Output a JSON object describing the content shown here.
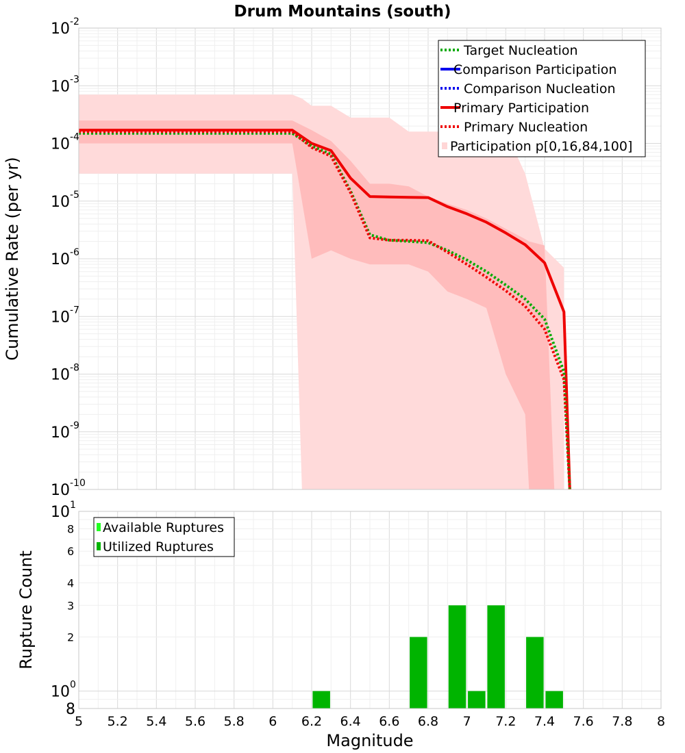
{
  "chart_data": [
    {
      "type": "line",
      "title": "Drum Mountains (south)",
      "xlabel": "",
      "ylabel": "Cumulative Rate (per yr)",
      "xlim": [
        5,
        8
      ],
      "ylim": [
        1e-10,
        0.01
      ],
      "yscale": "log",
      "grid": true,
      "legend_position": "top-right",
      "y_ticks": [
        {
          "base": "10",
          "exp": "-2",
          "value": 0.01
        },
        {
          "base": "10",
          "exp": "-3",
          "value": 0.001
        },
        {
          "base": "10",
          "exp": "-4",
          "value": 0.0001
        },
        {
          "base": "10",
          "exp": "-5",
          "value": 1e-05
        },
        {
          "base": "10",
          "exp": "-6",
          "value": 1e-06
        },
        {
          "base": "10",
          "exp": "-7",
          "value": 1e-07
        },
        {
          "base": "10",
          "exp": "-8",
          "value": 1e-08
        },
        {
          "base": "10",
          "exp": "-9",
          "value": 1e-09
        },
        {
          "base": "10",
          "exp": "-10",
          "value": 1e-10
        }
      ],
      "legend": [
        {
          "label": "Target Nucleation",
          "color": "#00aa00",
          "style": "dotted"
        },
        {
          "label": "Comparison Participation",
          "color": "#0000ee",
          "style": "solid"
        },
        {
          "label": "Comparison Nucleation",
          "color": "#0000ee",
          "style": "dotted"
        },
        {
          "label": "Primary Participation",
          "color": "#ee0000",
          "style": "solid"
        },
        {
          "label": "Primary Nucleation",
          "color": "#ee0000",
          "style": "dotted"
        },
        {
          "label": "Participation p[0,16,84,100]",
          "color": "#ffd6d6",
          "style": "band"
        }
      ],
      "series": [
        {
          "name": "Primary Participation",
          "color": "#ee0000",
          "dashed": false,
          "x": [
            5.0,
            6.1,
            6.2,
            6.3,
            6.4,
            6.5,
            6.6,
            6.7,
            6.8,
            6.9,
            7.0,
            7.1,
            7.2,
            7.3,
            7.4,
            7.5,
            7.53
          ],
          "y": [
            0.00017,
            0.00017,
            0.0001,
            7.5e-05,
            2.5e-05,
            1.2e-05,
            1.18e-05,
            1.16e-05,
            1.15e-05,
            8e-06,
            6e-06,
            4.3e-06,
            2.8e-06,
            1.75e-06,
            8.5e-07,
            1.2e-07,
            1e-10
          ]
        },
        {
          "name": "Target Nucleation",
          "color": "#00aa00",
          "dashed": true,
          "x": [
            5.0,
            6.1,
            6.2,
            6.3,
            6.4,
            6.5,
            6.6,
            6.7,
            6.8,
            6.9,
            7.0,
            7.1,
            7.2,
            7.3,
            7.4,
            7.5,
            7.53
          ],
          "y": [
            0.00015,
            0.00015,
            9e-05,
            6.5e-05,
            1.5e-05,
            2.6e-06,
            2.1e-06,
            2e-06,
            1.9e-06,
            1.4e-06,
            9.5e-07,
            6e-07,
            3.5e-07,
            2e-07,
            9e-08,
            1.1e-08,
            1e-10
          ]
        },
        {
          "name": "Primary Nucleation",
          "color": "#ee0000",
          "dashed": true,
          "x": [
            5.0,
            6.1,
            6.2,
            6.3,
            6.4,
            6.5,
            6.6,
            6.7,
            6.8,
            6.9,
            7.0,
            7.1,
            7.2,
            7.3,
            7.4,
            7.5,
            7.53
          ],
          "y": [
            0.00016,
            0.00016,
            8.5e-05,
            6e-05,
            1.4e-05,
            2.3e-06,
            2.1e-06,
            2.1e-06,
            2.05e-06,
            1.3e-06,
            8e-07,
            4.8e-07,
            2.8e-07,
            1.5e-07,
            6e-08,
            8e-09,
            1e-10
          ]
        }
      ],
      "bands": [
        {
          "name": "Participation p[0,100]",
          "color": "#ffdada",
          "x": [
            5.0,
            6.1,
            6.15,
            6.2,
            6.3,
            6.4,
            6.5,
            6.6,
            6.7,
            6.8,
            6.9,
            7.0,
            7.1,
            7.2,
            7.3,
            7.4,
            7.5
          ],
          "upper": [
            0.0007,
            0.0007,
            0.0006,
            0.00045,
            0.00045,
            0.00028,
            0.00028,
            0.00028,
            0.00016,
            0.00016,
            0.00016,
            0.00016,
            0.00016,
            0.00016,
            3e-05,
            1.5e-06,
            7e-07
          ],
          "lower": [
            3e-05,
            3e-05,
            1e-10,
            1e-10,
            1e-10,
            1e-10,
            1e-10,
            1e-10,
            1e-10,
            1e-10,
            1e-10,
            1e-10,
            1e-10,
            1e-10,
            1e-10,
            1e-10,
            1e-10
          ]
        },
        {
          "name": "Participation p[16,84]",
          "color": "#ffbcbc",
          "x": [
            5.0,
            6.1,
            6.2,
            6.3,
            6.4,
            6.5,
            6.6,
            6.7,
            6.8,
            6.9,
            7.0,
            7.1,
            7.2,
            7.3,
            7.32,
            7.4,
            7.45
          ],
          "upper": [
            0.00025,
            0.00025,
            0.00017,
            0.00011,
            5e-05,
            2e-05,
            2e-05,
            1.8e-05,
            1.2e-05,
            9e-06,
            7e-06,
            5e-06,
            3.3e-06,
            2.2e-06,
            2e-06,
            1.7e-06,
            1e-10
          ],
          "lower": [
            0.0001,
            0.0001,
            1e-06,
            1.4e-06,
            1e-06,
            8e-07,
            8e-07,
            8e-07,
            6e-07,
            2.7e-07,
            2e-07,
            1.4e-07,
            1e-08,
            2e-09,
            1e-10,
            1e-10,
            1e-10
          ]
        }
      ]
    },
    {
      "type": "bar",
      "xlabel": "Magnitude",
      "ylabel": "Rupture Count",
      "xlim": [
        5,
        8
      ],
      "ylim": [
        0.8,
        10
      ],
      "yscale": "log",
      "grid": true,
      "legend_position": "top-left",
      "bar_width": 0.09,
      "x_ticks": [
        "5",
        "5.2",
        "5.4",
        "5.6",
        "5.8",
        "6",
        "6.2",
        "6.4",
        "6.6",
        "6.8",
        "7",
        "7.2",
        "7.4",
        "7.6",
        "7.8",
        "8"
      ],
      "y_ticks": [
        {
          "value": 10,
          "base": "10",
          "exp": "1",
          "major": true
        },
        {
          "value": 8,
          "label": "8"
        },
        {
          "value": 6,
          "label": "6"
        },
        {
          "value": 4,
          "label": "4"
        },
        {
          "value": 3,
          "label": "3"
        },
        {
          "value": 2,
          "label": "2"
        },
        {
          "value": 1,
          "base": "10",
          "exp": "0",
          "major": true
        },
        {
          "value": 0.8,
          "label": "8",
          "bottom": true
        }
      ],
      "legend": [
        {
          "label": "Available Ruptures",
          "color": "#22ff22"
        },
        {
          "label": "Utilized Ruptures",
          "color": "#00b400"
        }
      ],
      "categories": [
        6.25,
        6.75,
        6.95,
        7.05,
        7.15,
        7.35,
        7.45
      ],
      "series": [
        {
          "name": "Utilized Ruptures",
          "color": "#00b400",
          "values": [
            1,
            2,
            3,
            1,
            3,
            2,
            1
          ]
        }
      ]
    }
  ]
}
